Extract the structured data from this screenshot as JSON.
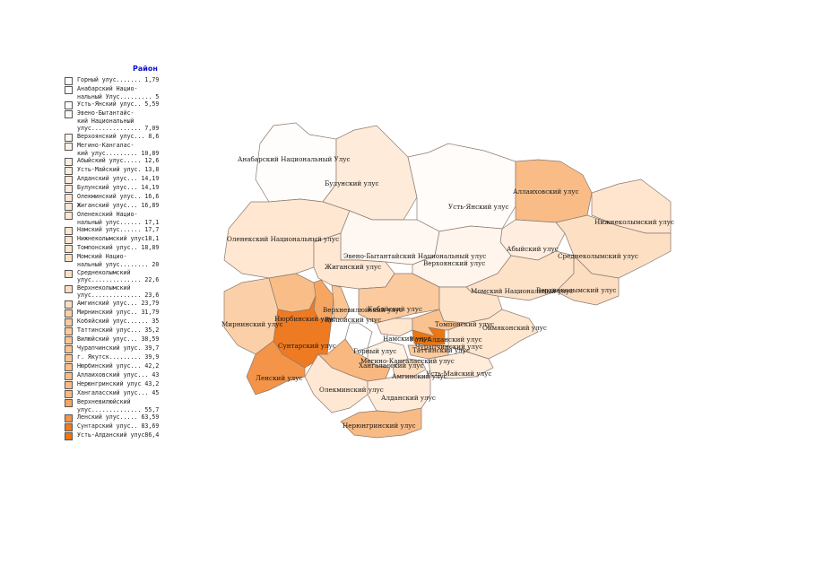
{
  "legend": {
    "title": "Район",
    "items": [
      {
        "label": "Горный улус....... 1,79",
        "color": "#ffffff"
      },
      {
        "label": "Анабарский Нацио-\nнальный Улус......... 5",
        "color": "#fffdfb"
      },
      {
        "label": "Усть-Янский улус.. 5,59",
        "color": "#fffcfa"
      },
      {
        "label": "Эвено-Бытантайс-\nкий Национальный\nулус.............. 7,09",
        "color": "#fff8f2"
      },
      {
        "label": "Верхоянский улус... 8,6",
        "color": "#fff5ec"
      },
      {
        "label": "Мегино-Кангалас-\nкий улус......... 10,89",
        "color": "#fff1e4"
      },
      {
        "label": "Абыйский улус..... 12,6",
        "color": "#ffeedf"
      },
      {
        "label": "Усть-Майский улус. 13,8",
        "color": "#ffecdb"
      },
      {
        "label": "Алданский улус... 14,19",
        "color": "#ffebd9"
      },
      {
        "label": "Булунский улус... 14,19",
        "color": "#ffebd9"
      },
      {
        "label": "Олекминский улус.. 16,6",
        "color": "#ffe8d3"
      },
      {
        "label": "Жиганский улус... 16,89",
        "color": "#ffe7d2"
      },
      {
        "label": "Оленекский Нацио-\nнальный улус...... 17,1",
        "color": "#ffe7d1"
      },
      {
        "label": "Намский улус...... 17,7",
        "color": "#ffe6cf"
      },
      {
        "label": "Нижнеколымский улус18,1",
        "color": "#ffe5ce"
      },
      {
        "label": "Томпонский улус.. 18,89",
        "color": "#ffe4cc"
      },
      {
        "label": "Момский Нацио-\nнальный улус........ 20",
        "color": "#fee2c8"
      },
      {
        "label": "Среднеколымский\nулус.............. 22,6",
        "color": "#fde0c3"
      },
      {
        "label": "Верхнеколымский\nулус.............. 23,6",
        "color": "#fdddbf"
      },
      {
        "label": "Амгинский улус... 23,79",
        "color": "#fdddbe"
      },
      {
        "label": "Мирнинский улус.. 31,79",
        "color": "#fbd0a8"
      },
      {
        "label": "Кобяйский улус...... 35",
        "color": "#fbca9e"
      },
      {
        "label": "Таттинский улус... 35,2",
        "color": "#fbca9d"
      },
      {
        "label": "Вилюйский улус... 38,59",
        "color": "#fac493"
      },
      {
        "label": "Чурапчинский улус. 39,7",
        "color": "#fac290"
      },
      {
        "label": "г. Якутск......... 39,9",
        "color": "#fac18f"
      },
      {
        "label": "Нюрбинский улус... 42,2",
        "color": "#f9bd88"
      },
      {
        "label": "Аллаиховский улус... 43",
        "color": "#f9bc86"
      },
      {
        "label": "Нерюнгринский улус 43,2",
        "color": "#f9bb85"
      },
      {
        "label": "Хангаласский улус... 45",
        "color": "#f9b880"
      },
      {
        "label": "Верхневилюйский\nулус.............. 55,7",
        "color": "#f6a660"
      },
      {
        "label": "Ленский улус..... 63,59",
        "color": "#f39448"
      },
      {
        "label": "Сунтарский улус.. 83,69",
        "color": "#ee7a22"
      },
      {
        "label": "Усть-Алданский улус86,4",
        "color": "#ec760f"
      }
    ]
  },
  "map": {
    "regions": [
      {
        "name": "Анабарский Национальный Улус",
        "color": "#fffdfb"
      },
      {
        "name": "Булунский улус",
        "color": "#ffebd9"
      },
      {
        "name": "Усть-Янский улус",
        "color": "#fffcfa"
      },
      {
        "name": "Аллаиховский улус",
        "color": "#f9bc86"
      },
      {
        "name": "Нижнеколымский улус",
        "color": "#ffe5ce"
      },
      {
        "name": "Оленекский Национальный улус",
        "color": "#ffe7d1"
      },
      {
        "name": "Эвено-Бытантайский Национальный улус",
        "color": "#fff8f2"
      },
      {
        "name": "Абыйский улус",
        "color": "#ffeedf"
      },
      {
        "name": "Среднеколымский улус",
        "color": "#fde0c3"
      },
      {
        "name": "Верхоянский улус",
        "color": "#fff5ec"
      },
      {
        "name": "Жиганский улус",
        "color": "#ffe7d2"
      },
      {
        "name": "Момский Национальный улус",
        "color": "#fee2c8"
      },
      {
        "name": "Верхнеколымский улус",
        "color": "#fdddbf"
      },
      {
        "name": "Кобяйский улус",
        "color": "#fbca9e"
      },
      {
        "name": "Томпонский улус",
        "color": "#ffe4cc"
      },
      {
        "name": "Мирнинский улус",
        "color": "#fbd0a8"
      },
      {
        "name": "Нюрбинский улус",
        "color": "#f9bd88"
      },
      {
        "name": "Верхневилюйский улус",
        "color": "#f6a660"
      },
      {
        "name": "Вилюйский улус",
        "color": "#fac493"
      },
      {
        "name": "Сунтарский улус",
        "color": "#ee7a22"
      },
      {
        "name": "Ленский улус",
        "color": "#f39448"
      },
      {
        "name": "Горный улус",
        "color": "#ffffff"
      },
      {
        "name": "Намский улус",
        "color": "#ffe6cf"
      },
      {
        "name": "Усть-Алданский улус",
        "color": "#ec760f"
      },
      {
        "name": "Таттинский улус",
        "color": "#fbca9d"
      },
      {
        "name": "Мегино-Кангаласский улус",
        "color": "#fff1e4"
      },
      {
        "name": "Хангаласский улус",
        "color": "#f9b880"
      },
      {
        "name": "Олекминский улус",
        "color": "#ffe8d3"
      },
      {
        "name": "Амгинский улус",
        "color": "#fdddbe"
      },
      {
        "name": "Усть-Майский улус",
        "color": "#ffecdb"
      },
      {
        "name": "Оймяконский улус",
        "color": "#ffe6cf"
      },
      {
        "name": "Алданский улус",
        "color": "#ffebd9"
      },
      {
        "name": "Нерюнгринский улус",
        "color": "#f9bb85"
      },
      {
        "name": "Чурапчинский улус",
        "color": "#fac290"
      }
    ]
  }
}
